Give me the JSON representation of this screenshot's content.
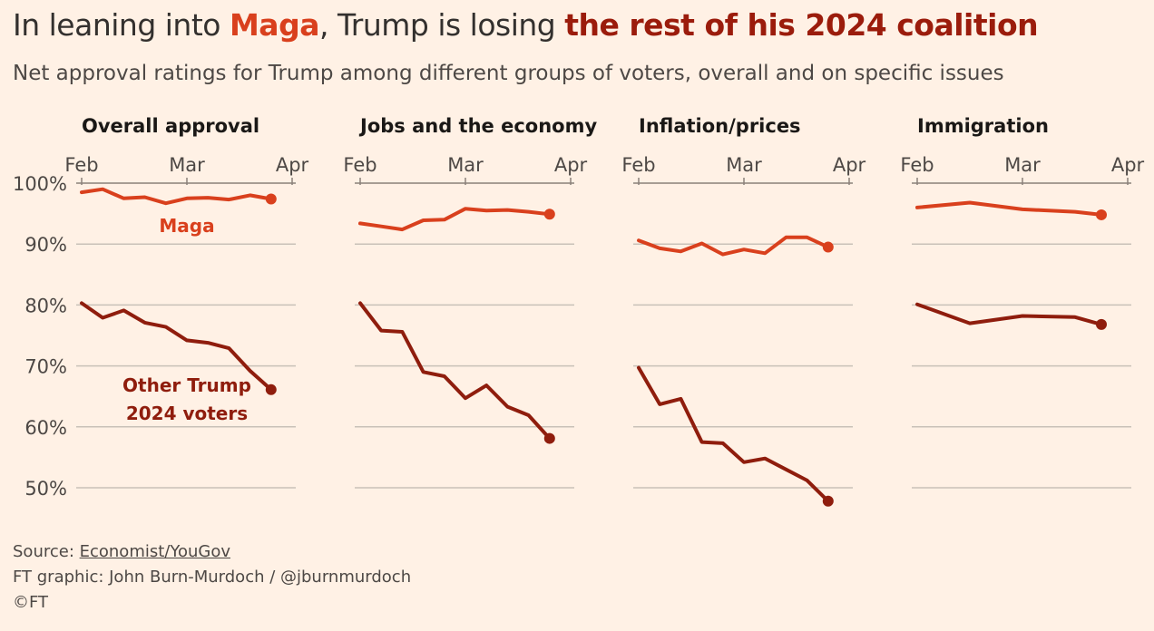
{
  "title": {
    "part1": "In leaning into ",
    "part2": "Maga",
    "part3": ", Trump is losing ",
    "part4": "the rest of his 2024 coalition"
  },
  "subtitle": "Net approval ratings for Trump among different groups of voters, overall and on specific issues",
  "footer": {
    "source_label": "Source: ",
    "source_link": "Economist/YouGov",
    "credit": "FT graphic: John Burn-Murdoch / @jburnmurdoch",
    "copyright": "©FT"
  },
  "colors": {
    "background": "#fff1e5",
    "maga": "#d9401d",
    "other": "#8f1d0d",
    "grid": "#c9c1b8",
    "text": "#33302e"
  },
  "chart_data": {
    "type": "line",
    "y_tick_labels": [
      "100%",
      "90%",
      "80%",
      "70%",
      "60%",
      "50%"
    ],
    "y_ticks": [
      100,
      90,
      80,
      70,
      60,
      50
    ],
    "ylim": [
      47,
      100
    ],
    "x_tick_labels": [
      "Feb",
      "Mar",
      "Apr"
    ],
    "x_range": [
      0,
      2
    ],
    "series_labels": {
      "maga": "Maga",
      "other_line1": "Other Trump",
      "other_line2": "2024 voters"
    },
    "panels": [
      {
        "title": "Overall approval",
        "series": [
          {
            "key": "maga",
            "x": [
              0.0,
              0.2,
              0.4,
              0.6,
              0.8,
              1.0,
              1.2,
              1.4,
              1.6,
              1.8
            ],
            "y": [
              98.5,
              99.0,
              97.5,
              97.7,
              96.7,
              97.5,
              97.6,
              97.3,
              98.0,
              97.4
            ]
          },
          {
            "key": "other",
            "x": [
              0.0,
              0.2,
              0.4,
              0.6,
              0.8,
              1.0,
              1.2,
              1.4,
              1.6,
              1.8
            ],
            "y": [
              80.3,
              77.9,
              79.1,
              77.1,
              76.4,
              74.2,
              73.8,
              72.9,
              69.2,
              66.1
            ]
          }
        ]
      },
      {
        "title": "Jobs and the economy",
        "series": [
          {
            "key": "maga",
            "x": [
              0.0,
              0.2,
              0.4,
              0.6,
              0.8,
              1.0,
              1.2,
              1.4,
              1.6,
              1.8
            ],
            "y": [
              93.4,
              92.9,
              92.4,
              93.9,
              94.0,
              95.8,
              95.5,
              95.6,
              95.3,
              94.9
            ]
          },
          {
            "key": "other",
            "x": [
              0.0,
              0.2,
              0.4,
              0.6,
              0.8,
              1.0,
              1.2,
              1.4,
              1.6,
              1.8
            ],
            "y": [
              80.3,
              75.8,
              75.6,
              69.0,
              68.3,
              64.7,
              66.8,
              63.3,
              61.9,
              58.1
            ]
          }
        ]
      },
      {
        "title": "Inflation/prices",
        "series": [
          {
            "key": "maga",
            "x": [
              0.0,
              0.2,
              0.4,
              0.6,
              0.8,
              1.0,
              1.2,
              1.4,
              1.6,
              1.8
            ],
            "y": [
              90.6,
              89.3,
              88.8,
              90.1,
              88.3,
              89.1,
              88.5,
              91.1,
              91.1,
              89.5
            ]
          },
          {
            "key": "other",
            "x": [
              0.0,
              0.2,
              0.4,
              0.6,
              0.8,
              1.0,
              1.2,
              1.4,
              1.6,
              1.8
            ],
            "y": [
              69.7,
              63.7,
              64.6,
              57.5,
              57.3,
              54.2,
              54.8,
              53.0,
              51.2,
              47.8
            ]
          }
        ]
      },
      {
        "title": "Immigration",
        "series": [
          {
            "key": "maga",
            "x": [
              0.0,
              0.5,
              1.0,
              1.5,
              1.75
            ],
            "y": [
              96.0,
              96.8,
              95.7,
              95.3,
              94.8
            ]
          },
          {
            "key": "other",
            "x": [
              0.0,
              0.5,
              1.0,
              1.5,
              1.75
            ],
            "y": [
              80.1,
              77.0,
              78.2,
              78.0,
              76.8
            ]
          }
        ]
      }
    ]
  }
}
